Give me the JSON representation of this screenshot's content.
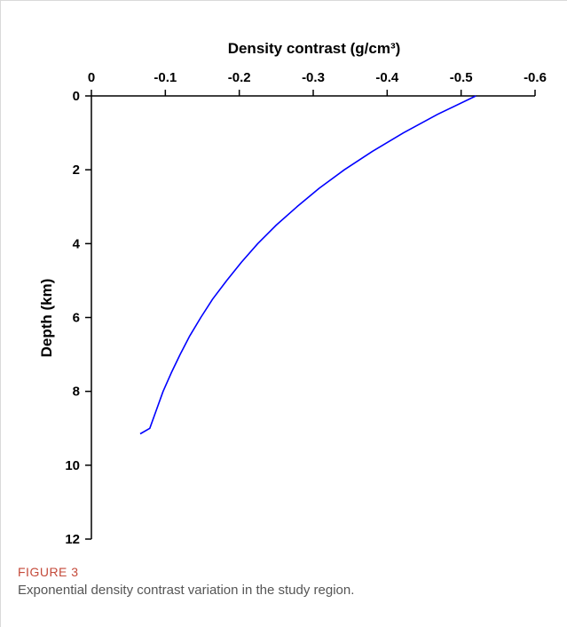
{
  "chart_data": {
    "type": "line",
    "xlabel": "Density contrast (g/cm³)",
    "ylabel": "Depth (km)",
    "xlim": [
      0,
      -0.6
    ],
    "ylim": [
      0,
      12
    ],
    "x_ticks": [
      "0",
      "-0.1",
      "-0.2",
      "-0.3",
      "-0.4",
      "-0.5",
      "-0.6"
    ],
    "y_ticks": [
      "0",
      "2",
      "4",
      "6",
      "8",
      "10",
      "12"
    ],
    "x_axis_position": "top",
    "y_inverted": true,
    "grid": false,
    "series": [
      {
        "color": "#0000ff",
        "points": [
          {
            "x": -0.52,
            "y": 0.0
          },
          {
            "x": -0.468,
            "y": 0.5
          },
          {
            "x": -0.422,
            "y": 1.0
          },
          {
            "x": -0.38,
            "y": 1.5
          },
          {
            "x": -0.342,
            "y": 2.0
          },
          {
            "x": -0.308,
            "y": 2.5
          },
          {
            "x": -0.278,
            "y": 3.0
          },
          {
            "x": -0.25,
            "y": 3.5
          },
          {
            "x": -0.225,
            "y": 4.0
          },
          {
            "x": -0.203,
            "y": 4.5
          },
          {
            "x": -0.183,
            "y": 5.0
          },
          {
            "x": -0.164,
            "y": 5.5
          },
          {
            "x": -0.148,
            "y": 6.0
          },
          {
            "x": -0.133,
            "y": 6.5
          },
          {
            "x": -0.12,
            "y": 7.0
          },
          {
            "x": -0.108,
            "y": 7.5
          },
          {
            "x": -0.097,
            "y": 8.0
          },
          {
            "x": -0.088,
            "y": 8.5
          },
          {
            "x": -0.079,
            "y": 9.0
          },
          {
            "x": -0.066,
            "y": 9.15
          }
        ]
      }
    ]
  },
  "caption": {
    "label": "FIGURE 3",
    "text": "Exponential density contrast variation in the study region."
  }
}
